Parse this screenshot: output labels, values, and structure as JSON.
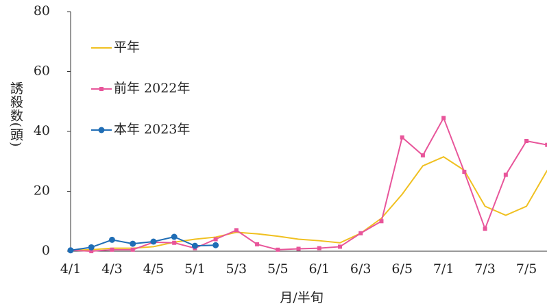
{
  "chart_data": {
    "type": "line",
    "ylabel": "誘殺数(頭)",
    "xlabel": "月/半旬",
    "categories": [
      "4/1",
      null,
      "4/3",
      null,
      "4/5",
      null,
      "5/1",
      null,
      "5/3",
      null,
      "5/5",
      null,
      "6/1",
      null,
      "6/3",
      null,
      "6/5",
      null,
      "7/1",
      null,
      "7/3",
      null,
      "7/5",
      null
    ],
    "ylim": [
      0,
      80
    ],
    "yticks": [
      0,
      20,
      40,
      60,
      80
    ],
    "legend": "upper left",
    "series": [
      {
        "name": "平年",
        "color": "#f0c020",
        "marker": "none",
        "values": [
          0.3,
          0.5,
          1,
          1,
          1.5,
          3,
          4,
          4.7,
          6.3,
          5.8,
          5,
          4,
          3.5,
          2.8,
          6,
          11,
          19,
          28.5,
          31.5,
          27,
          15,
          12,
          15,
          27
        ]
      },
      {
        "name": "前年 2022年",
        "color": "#e8559a",
        "marker": "square",
        "values": [
          0.3,
          0,
          0.5,
          0.5,
          3,
          2.8,
          1,
          4,
          7,
          2.3,
          0.5,
          0.8,
          1,
          1.5,
          6,
          10,
          38,
          32,
          44.5,
          26.5,
          7.5,
          25.5,
          36.8,
          35.5
        ]
      },
      {
        "name": "本年 2023年",
        "color": "#1f6db5",
        "marker": "circle",
        "values": [
          0.3,
          1.3,
          3.8,
          2.5,
          3.2,
          4.8,
          1.8,
          2,
          null,
          null,
          null,
          null,
          null,
          null,
          null,
          null,
          null,
          null,
          null,
          null,
          null,
          null,
          null,
          null
        ]
      }
    ]
  }
}
